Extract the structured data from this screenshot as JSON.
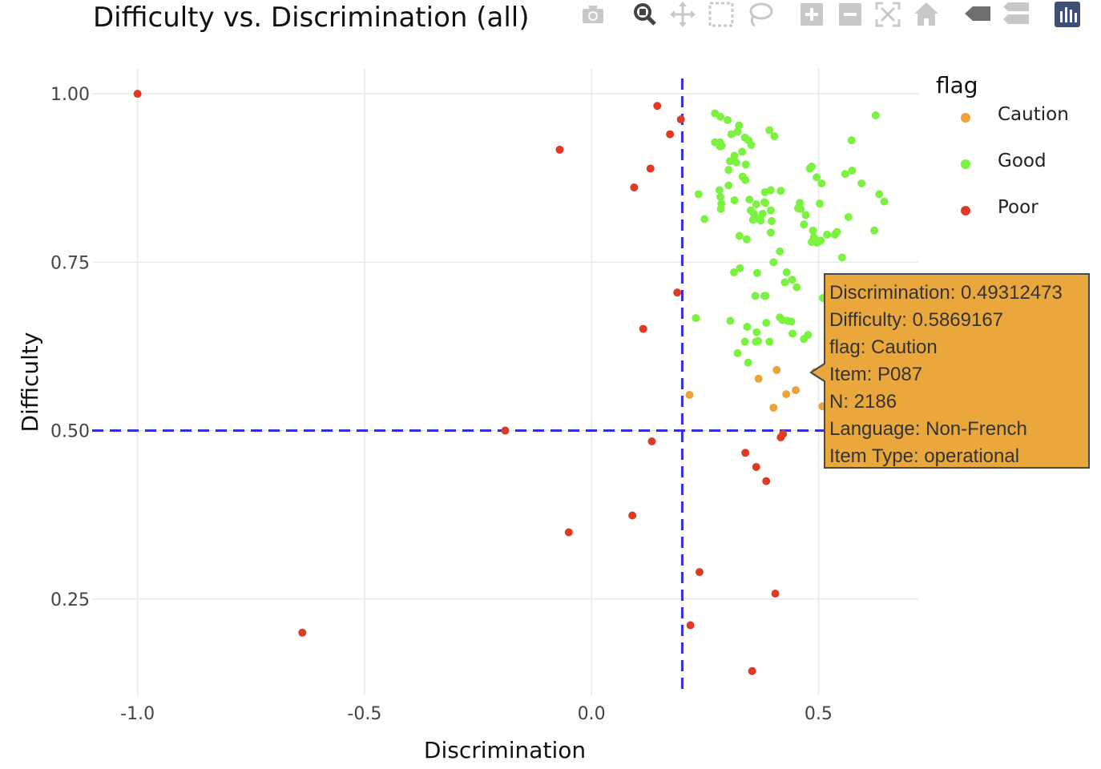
{
  "toolbar": {
    "icons": [
      "camera-icon",
      "zoom-icon",
      "pan-icon",
      "box-select-icon",
      "lasso-select-icon",
      "zoom-in-icon",
      "zoom-out-icon",
      "autoscale-icon",
      "reset-axes-icon",
      "spike-lines-icon",
      "compare-data-icon",
      "plotly-logo-icon"
    ],
    "active": "zoom-icon"
  },
  "legend": {
    "title": "flag",
    "items": [
      {
        "label": "Caution",
        "color": "#eba33a"
      },
      {
        "label": "Good",
        "color": "#7cf240"
      },
      {
        "label": "Poor",
        "color": "#df3a25"
      }
    ]
  },
  "tooltip": {
    "lines": [
      "Discrimination:  0.49312473",
      "Difficulty: 0.5869167",
      "flag: Caution",
      "Item: P087",
      "N: 2186",
      "Language: Non-French",
      "Item Type: operational"
    ]
  },
  "chart_data": {
    "type": "scatter",
    "title": "Difficulty vs. Discrimination (all)",
    "xlabel": "Discrimination",
    "ylabel": "Difficulty",
    "xlim": [
      -1.1,
      0.72
    ],
    "ylim": [
      0.107,
      1.037
    ],
    "xticks": [
      {
        "v": -1.0,
        "label": "-1.0"
      },
      {
        "v": -0.5,
        "label": "-0.5"
      },
      {
        "v": 0.0,
        "label": "0.0"
      },
      {
        "v": 0.5,
        "label": "0.5"
      }
    ],
    "yticks": [
      {
        "v": 0.25,
        "label": "0.25"
      },
      {
        "v": 0.5,
        "label": "0.50"
      },
      {
        "v": 0.75,
        "label": "0.75"
      },
      {
        "v": 1.0,
        "label": "1.00"
      }
    ],
    "grid": true,
    "legend_position": "right",
    "reference_lines": {
      "x": 0.2,
      "y": 0.5,
      "color": "#3030e0",
      "style": "dashed"
    },
    "series": [
      {
        "name": "Caution",
        "color": "#eba33a",
        "points": [
          [
            0.216,
            0.553
          ],
          [
            0.368,
            0.577
          ],
          [
            0.408,
            0.59
          ],
          [
            0.401,
            0.534
          ],
          [
            0.429,
            0.554
          ],
          [
            0.45,
            0.56
          ],
          [
            0.493,
            0.587
          ],
          [
            0.509,
            0.536
          ],
          [
            0.52,
            0.531
          ]
        ]
      },
      {
        "name": "Good",
        "color": "#7cf240",
        "points": [
          [
            0.272,
            0.971
          ],
          [
            0.284,
            0.966
          ],
          [
            0.3,
            0.961
          ],
          [
            0.308,
            0.94
          ],
          [
            0.325,
            0.953
          ],
          [
            0.322,
            0.944
          ],
          [
            0.338,
            0.935
          ],
          [
            0.352,
            0.924
          ],
          [
            0.346,
            0.931
          ],
          [
            0.392,
            0.946
          ],
          [
            0.403,
            0.937
          ],
          [
            0.283,
            0.928
          ],
          [
            0.272,
            0.928
          ],
          [
            0.283,
            0.922
          ],
          [
            0.287,
            0.923
          ],
          [
            0.332,
            0.914
          ],
          [
            0.305,
            0.9
          ],
          [
            0.315,
            0.908
          ],
          [
            0.319,
            0.898
          ],
          [
            0.34,
            0.895
          ],
          [
            0.302,
            0.887
          ],
          [
            0.333,
            0.877
          ],
          [
            0.339,
            0.872
          ],
          [
            0.302,
            0.864
          ],
          [
            0.282,
            0.857
          ],
          [
            0.236,
            0.851
          ],
          [
            0.284,
            0.847
          ],
          [
            0.382,
            0.854
          ],
          [
            0.395,
            0.857
          ],
          [
            0.417,
            0.856
          ],
          [
            0.286,
            0.837
          ],
          [
            0.315,
            0.842
          ],
          [
            0.348,
            0.843
          ],
          [
            0.363,
            0.836
          ],
          [
            0.381,
            0.839
          ],
          [
            0.383,
            0.838
          ],
          [
            0.351,
            0.827
          ],
          [
            0.358,
            0.822
          ],
          [
            0.377,
            0.822
          ],
          [
            0.395,
            0.827
          ],
          [
            0.285,
            0.829
          ],
          [
            0.249,
            0.814
          ],
          [
            0.356,
            0.813
          ],
          [
            0.367,
            0.815
          ],
          [
            0.373,
            0.812
          ],
          [
            0.397,
            0.811
          ],
          [
            0.326,
            0.789
          ],
          [
            0.342,
            0.784
          ],
          [
            0.395,
            0.794
          ],
          [
            0.459,
            0.838
          ],
          [
            0.455,
            0.83
          ],
          [
            0.461,
            0.829
          ],
          [
            0.472,
            0.82
          ],
          [
            0.468,
            0.806
          ],
          [
            0.488,
            0.797
          ],
          [
            0.49,
            0.787
          ],
          [
            0.485,
            0.78
          ],
          [
            0.497,
            0.779
          ],
          [
            0.505,
            0.782
          ],
          [
            0.481,
            0.889
          ],
          [
            0.485,
            0.892
          ],
          [
            0.496,
            0.876
          ],
          [
            0.507,
            0.867
          ],
          [
            0.503,
            0.837
          ],
          [
            0.559,
            0.881
          ],
          [
            0.574,
            0.886
          ],
          [
            0.595,
            0.867
          ],
          [
            0.626,
            0.968
          ],
          [
            0.573,
            0.931
          ],
          [
            0.634,
            0.851
          ],
          [
            0.645,
            0.84
          ],
          [
            0.566,
            0.817
          ],
          [
            0.541,
            0.795
          ],
          [
            0.536,
            0.791
          ],
          [
            0.519,
            0.791
          ],
          [
            0.623,
            0.797
          ],
          [
            0.552,
            0.757
          ],
          [
            0.415,
            0.766
          ],
          [
            0.401,
            0.75
          ],
          [
            0.365,
            0.734
          ],
          [
            0.327,
            0.741
          ],
          [
            0.314,
            0.735
          ],
          [
            0.43,
            0.735
          ],
          [
            0.442,
            0.724
          ],
          [
            0.426,
            0.72
          ],
          [
            0.452,
            0.713
          ],
          [
            0.361,
            0.7
          ],
          [
            0.384,
            0.7
          ],
          [
            0.381,
            0.7
          ],
          [
            0.51,
            0.697
          ],
          [
            0.23,
            0.667
          ],
          [
            0.306,
            0.663
          ],
          [
            0.415,
            0.668
          ],
          [
            0.421,
            0.664
          ],
          [
            0.432,
            0.663
          ],
          [
            0.44,
            0.662
          ],
          [
            0.385,
            0.66
          ],
          [
            0.343,
            0.654
          ],
          [
            0.364,
            0.646
          ],
          [
            0.443,
            0.644
          ],
          [
            0.477,
            0.642
          ],
          [
            0.468,
            0.636
          ],
          [
            0.338,
            0.632
          ],
          [
            0.362,
            0.632
          ],
          [
            0.367,
            0.633
          ],
          [
            0.392,
            0.632
          ],
          [
            0.322,
            0.615
          ],
          [
            0.345,
            0.601
          ]
        ]
      },
      {
        "name": "Poor",
        "color": "#df3a25",
        "points": [
          [
            -1.0,
            1.0
          ],
          [
            0.145,
            0.982
          ],
          [
            0.197,
            0.962
          ],
          [
            0.173,
            0.94
          ],
          [
            -0.07,
            0.917
          ],
          [
            0.13,
            0.889
          ],
          [
            0.094,
            0.861
          ],
          [
            0.189,
            0.705
          ],
          [
            0.114,
            0.651
          ],
          [
            -0.19,
            0.5
          ],
          [
            0.133,
            0.484
          ],
          [
            0.422,
            0.495
          ],
          [
            0.417,
            0.49
          ],
          [
            0.339,
            0.467
          ],
          [
            0.363,
            0.446
          ],
          [
            0.385,
            0.425
          ],
          [
            0.09,
            0.374
          ],
          [
            -0.05,
            0.349
          ],
          [
            0.238,
            0.29
          ],
          [
            0.405,
            0.258
          ],
          [
            -0.637,
            0.2
          ],
          [
            0.218,
            0.211
          ],
          [
            0.354,
            0.143
          ]
        ]
      }
    ]
  }
}
